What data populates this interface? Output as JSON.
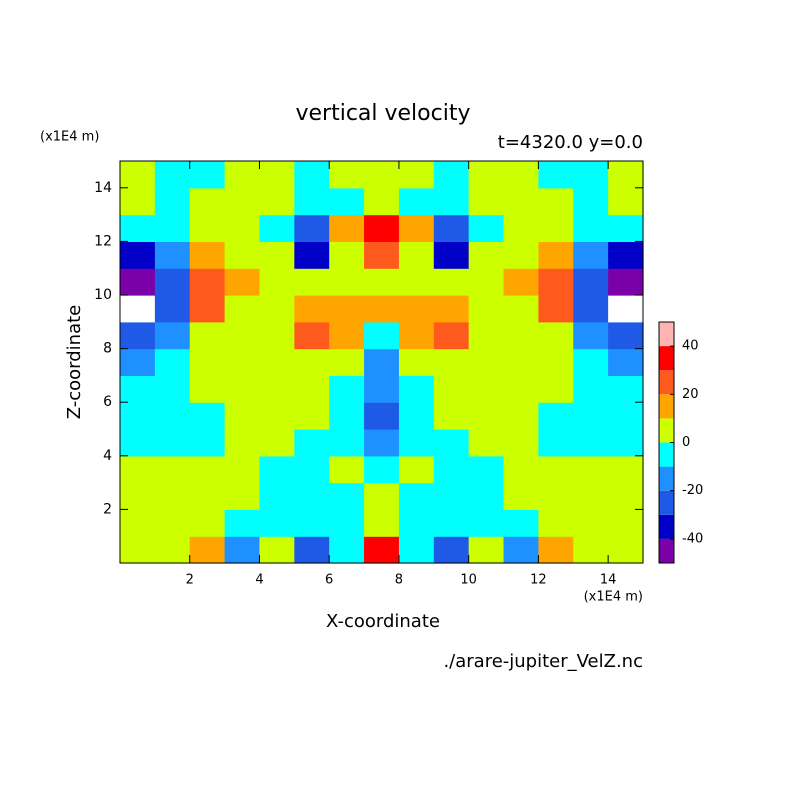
{
  "chart_data": {
    "type": "contour",
    "title": "vertical velocity",
    "subtitle": "t=4320.0 y=0.0",
    "y_unit": "(x1E4 m)",
    "x_unit": "(x1E4 m)",
    "x_label": "X-coordinate",
    "y_label": "Z-coordinate",
    "footer": "./arare-jupiter_VelZ.nc",
    "xlim": [
      0,
      15
    ],
    "ylim": [
      0,
      15
    ],
    "xticks": [
      2,
      4,
      6,
      8,
      10,
      12,
      14
    ],
    "yticks": [
      2,
      4,
      6,
      8,
      10,
      12,
      14
    ],
    "x": [
      0.5,
      1.5,
      2.5,
      3.5,
      4.5,
      5.5,
      6.5,
      7.5,
      8.5,
      9.5,
      10.5,
      11.5,
      12.5,
      13.5,
      14.5
    ],
    "y": [
      0.5,
      1.5,
      2.5,
      3.5,
      4.5,
      5.5,
      6.5,
      7.5,
      8.5,
      9.5,
      10.5,
      11.5,
      12.5,
      13.5,
      14.5
    ],
    "z": [
      [
        5,
        5,
        15,
        -15,
        5,
        -25,
        -5,
        35,
        -5,
        -25,
        5,
        -15,
        15,
        5,
        5
      ],
      [
        5,
        5,
        5,
        -5,
        -5,
        -5,
        -5,
        5,
        -5,
        -5,
        -5,
        -5,
        5,
        5,
        5
      ],
      [
        5,
        5,
        5,
        5,
        -5,
        -5,
        -5,
        5,
        -5,
        -5,
        -5,
        5,
        5,
        5,
        5
      ],
      [
        5,
        5,
        5,
        5,
        -5,
        -5,
        5,
        -5,
        5,
        -5,
        -5,
        5,
        5,
        5,
        5
      ],
      [
        -5,
        -5,
        -5,
        5,
        5,
        -5,
        -5,
        -15,
        -5,
        -5,
        5,
        5,
        -5,
        -5,
        -5
      ],
      [
        -5,
        -5,
        -5,
        5,
        5,
        5,
        -5,
        -25,
        -5,
        5,
        5,
        5,
        -5,
        -5,
        -5
      ],
      [
        -5,
        -5,
        5,
        5,
        5,
        5,
        -5,
        -15,
        -5,
        5,
        5,
        5,
        5,
        -5,
        -5
      ],
      [
        -15,
        -5,
        5,
        5,
        5,
        5,
        5,
        -15,
        5,
        5,
        5,
        5,
        5,
        -5,
        -15
      ],
      [
        -25,
        -15,
        5,
        5,
        5,
        25,
        15,
        -5,
        15,
        25,
        5,
        5,
        5,
        -15,
        -25
      ],
      [
        -55,
        -25,
        25,
        5,
        5,
        15,
        15,
        15,
        15,
        15,
        5,
        5,
        25,
        -25,
        -55
      ],
      [
        -45,
        -25,
        25,
        15,
        5,
        5,
        5,
        5,
        5,
        5,
        5,
        15,
        25,
        -25,
        -45
      ],
      [
        -35,
        -15,
        15,
        5,
        5,
        -35,
        5,
        25,
        5,
        -35,
        5,
        5,
        15,
        -15,
        -35
      ],
      [
        -5,
        -5,
        5,
        5,
        -5,
        -25,
        15,
        35,
        15,
        -25,
        -5,
        5,
        5,
        -5,
        -5
      ],
      [
        5,
        -5,
        5,
        5,
        5,
        -5,
        -5,
        5,
        -5,
        -5,
        5,
        5,
        5,
        -5,
        5
      ],
      [
        5,
        -5,
        -5,
        5,
        5,
        -5,
        5,
        5,
        5,
        -5,
        5,
        5,
        -5,
        -5,
        5
      ]
    ],
    "levels": [
      -50,
      -40,
      -30,
      -20,
      -10,
      0,
      10,
      20,
      30,
      40,
      50
    ],
    "colors": [
      "#7a00a8",
      "#0000c8",
      "#1e5ae6",
      "#1e90ff",
      "#00ffff",
      "#ccff00",
      "#ffa500",
      "#ff5a1e",
      "#ff0000",
      "#ffb4b4"
    ],
    "colorbar_ticks": [
      -40,
      -20,
      0,
      20,
      40
    ]
  }
}
